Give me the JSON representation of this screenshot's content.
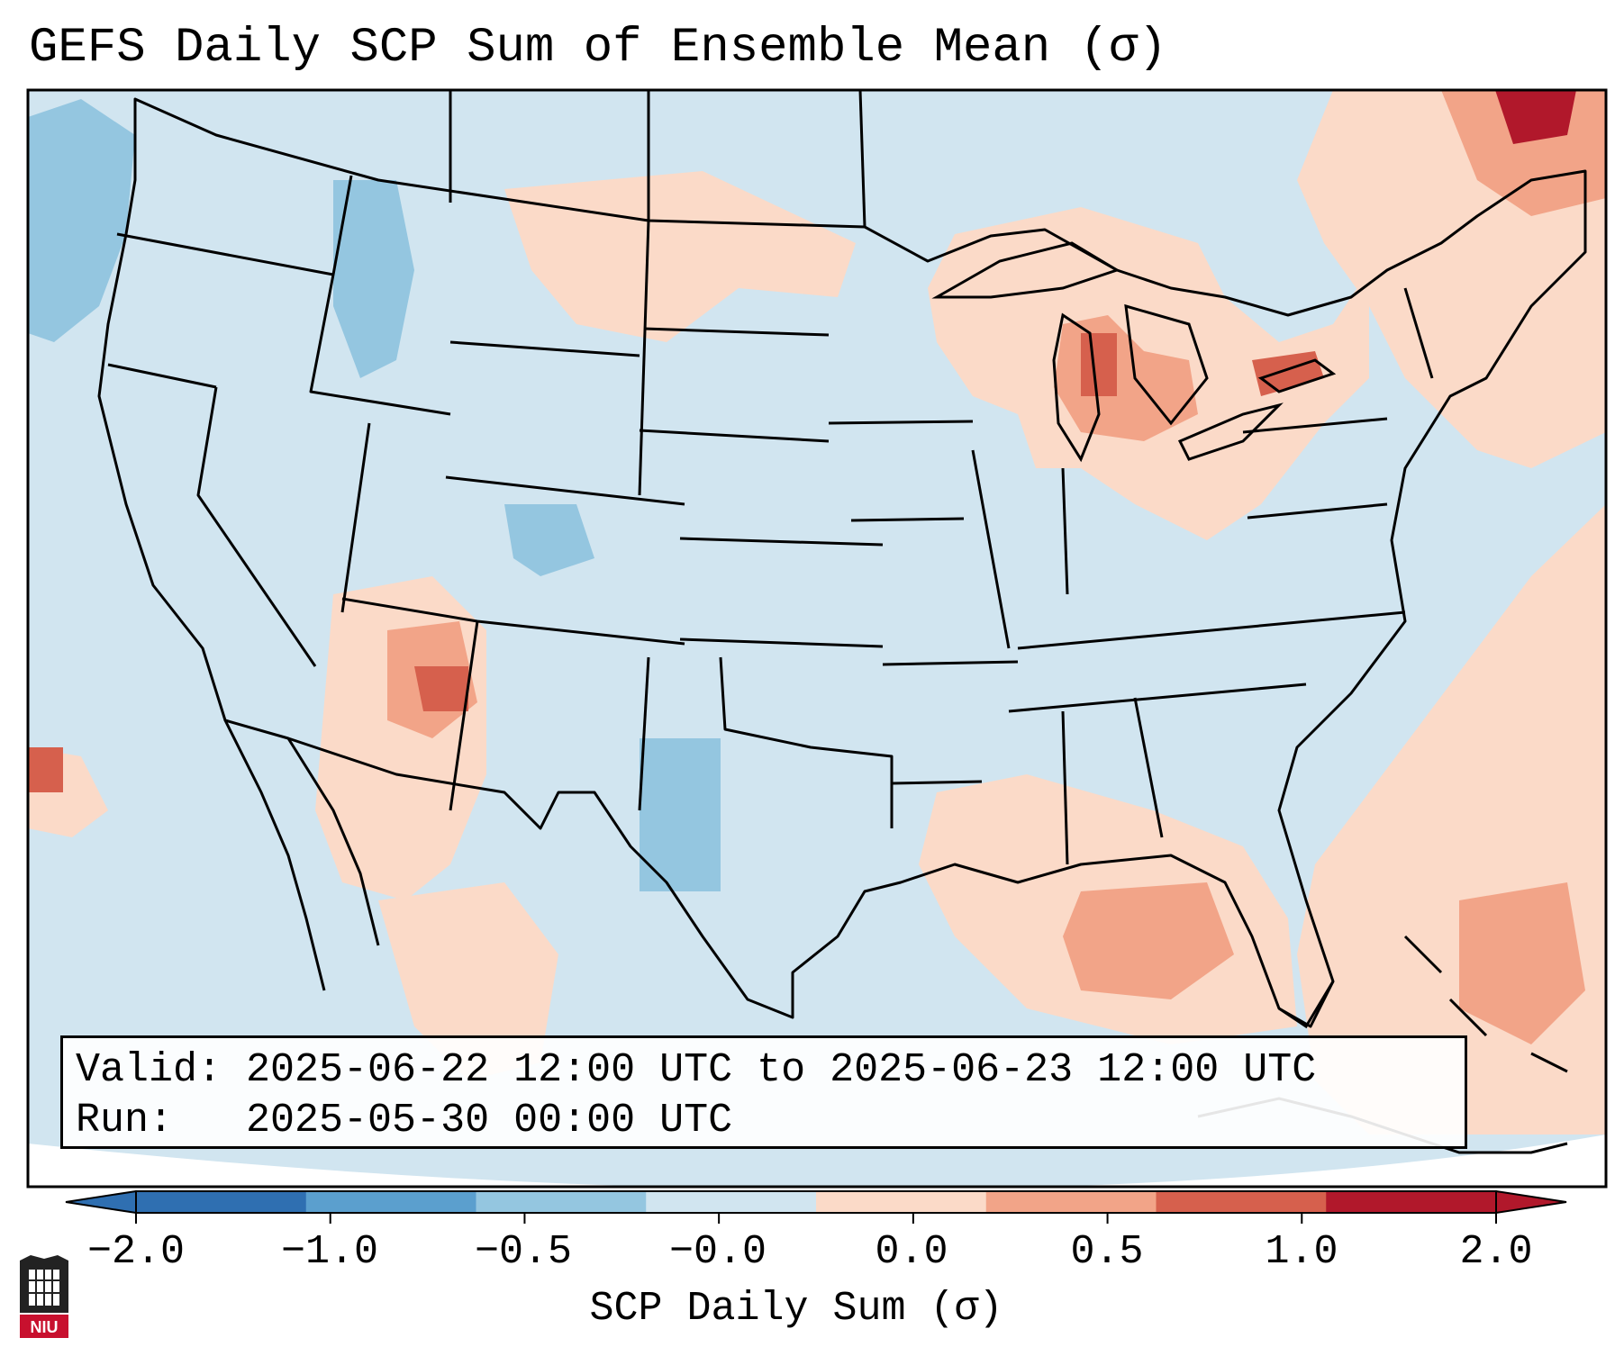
{
  "title": "GEFS Daily SCP Sum of Ensemble Mean (σ)",
  "valid_line": "Valid: 2025-06-22 12:00 UTC to 2025-06-23 12:00 UTC",
  "run_line": "Run:   2025-05-30 00:00 UTC",
  "colorbar": {
    "label": "SCP Daily Sum (σ)",
    "ticks": [
      "−2.0",
      "−1.0",
      "−0.5",
      "−0.0",
      "0.0",
      "0.5",
      "1.0",
      "2.0"
    ],
    "colors": [
      "#2f6fb1",
      "#5b9fce",
      "#94c6e0",
      "#d1e5f0",
      "#fbdac8",
      "#f2a488",
      "#d6604d",
      "#b1182b"
    ],
    "extend": "both"
  },
  "colors": {
    "map_background": "#d1e5f0",
    "positive_light": "#fbdac8",
    "positive_med": "#f2a488",
    "positive_strong": "#d6604d",
    "positive_max": "#b1182b",
    "negative_light": "#94c6e0"
  },
  "logo": {
    "text": "NIU",
    "icon": "niu-logo-icon"
  }
}
